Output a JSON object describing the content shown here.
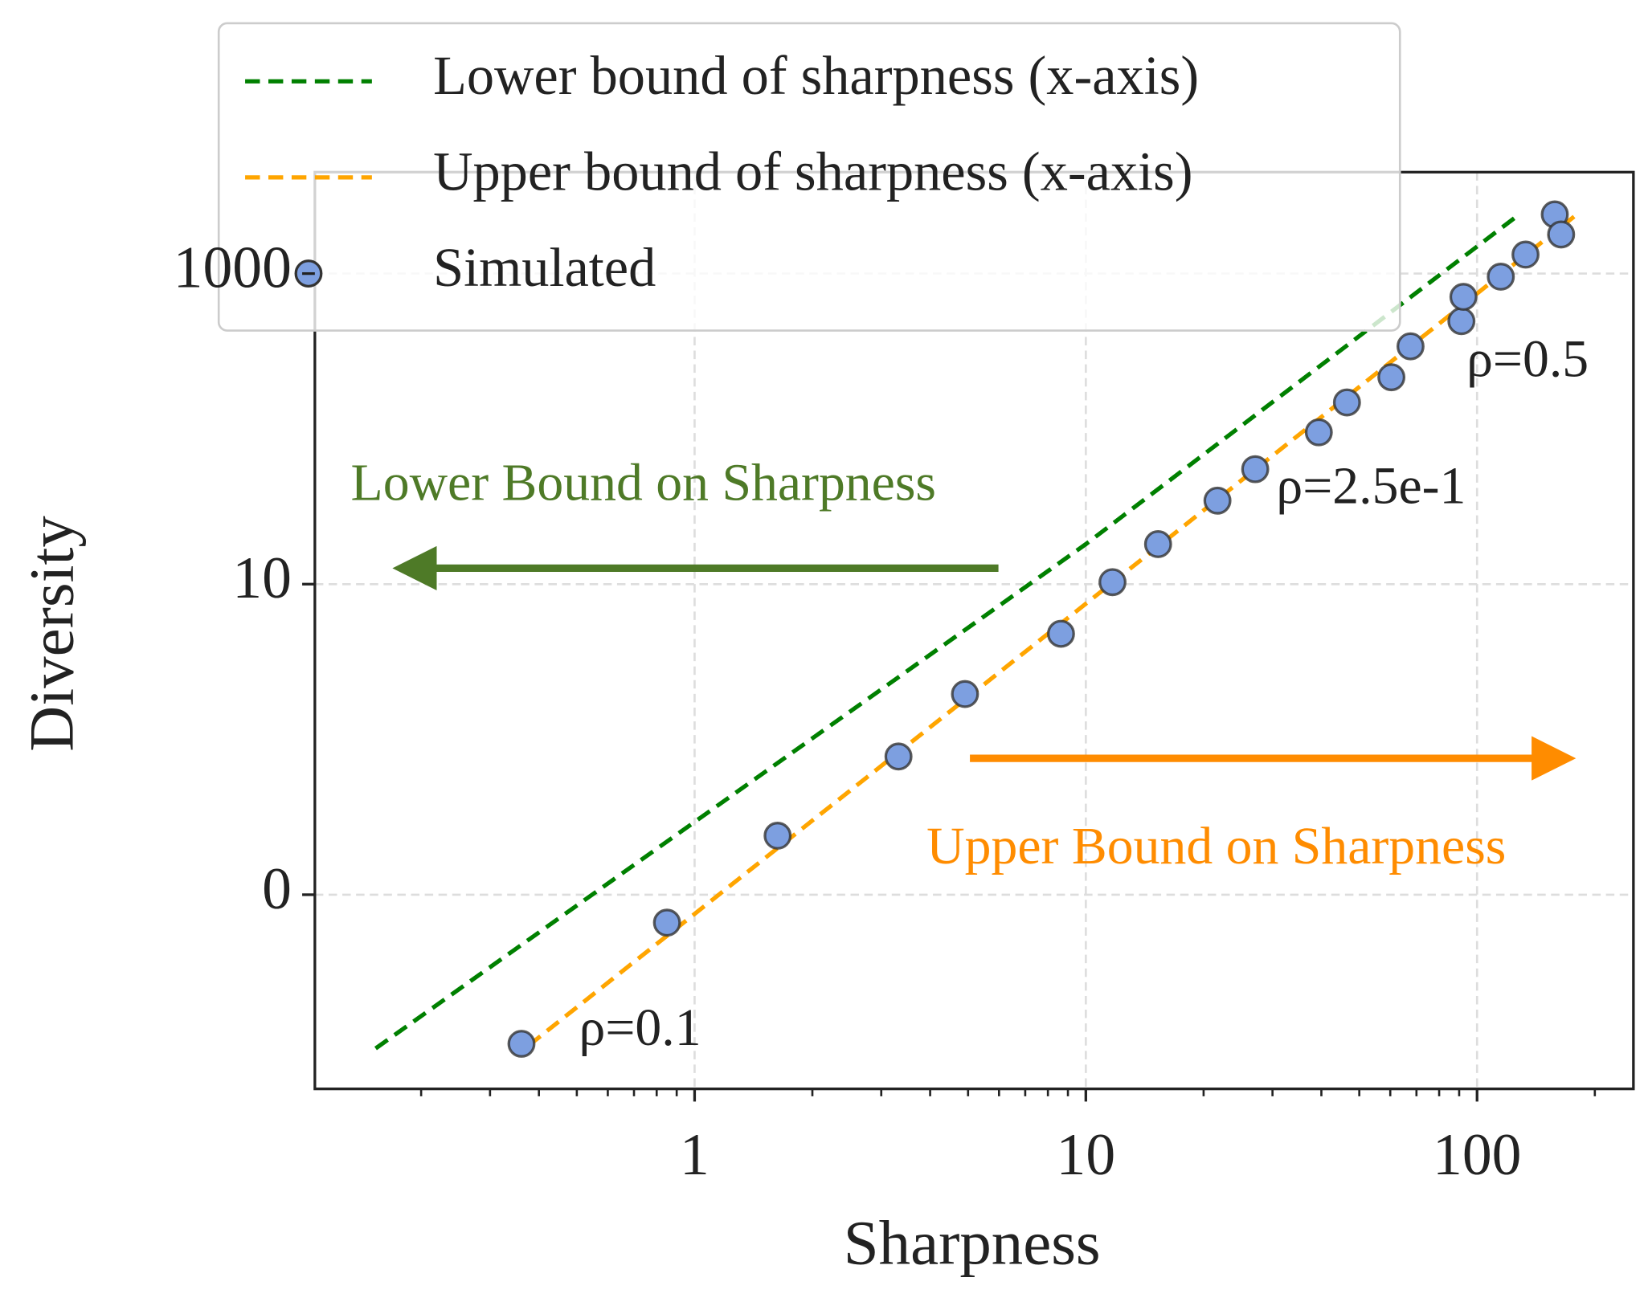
{
  "chart_data": {
    "type": "scatter",
    "x_label": "Sharpness",
    "y_label": "Diversity",
    "xscale": "log",
    "yscale": "symlog",
    "linthresh": 1,
    "xlim": [
      0.107,
      251
    ],
    "ylim": [
      -1.78,
      4500
    ],
    "xticks": [
      1,
      10,
      100
    ],
    "xminorticks": [
      0.2,
      0.3,
      0.4,
      0.5,
      0.6,
      0.7,
      0.8,
      0.9,
      2,
      3,
      4,
      5,
      6,
      7,
      8,
      9,
      20,
      30,
      40,
      50,
      60,
      70,
      80,
      90,
      200
    ],
    "yticks": [
      0,
      10,
      1000
    ],
    "grid": true,
    "series": [
      {
        "name": "Lower bound of sharpness (x-axis)",
        "color": "#008000",
        "kind": "line",
        "dashed": true,
        "x": [
          0.153,
          10,
          126
        ],
        "values": [
          -0.99,
          18.1,
          2327
        ]
      },
      {
        "name": "Upper bound of sharpness (x-axis)",
        "color": "#ffa500",
        "kind": "line",
        "dashed": true,
        "x": [
          0.377,
          177
        ],
        "values": [
          -0.97,
          2327
        ]
      },
      {
        "name": "Simulated",
        "color": "#7d9fe0",
        "kind": "points",
        "x": [
          0.361,
          0.85,
          1.63,
          3.32,
          4.91,
          8.64,
          11.7,
          15.3,
          21.7,
          27.1,
          39.4,
          46.5,
          60.4,
          67.6,
          91.2,
          92.3,
          115,
          133,
          158,
          164
        ],
        "values": [
          -0.96,
          -0.18,
          0.38,
          0.89,
          1.96,
          4.79,
          10.3,
          18.1,
          34.5,
          55,
          95,
          148,
          215,
          340,
          494,
          708,
          955,
          1325,
          2404,
          1786
        ]
      }
    ],
    "annotations": [
      {
        "text": "ρ=0.1",
        "color": "#222222"
      },
      {
        "text": "ρ=2.5e-1",
        "color": "#222222"
      },
      {
        "text": "ρ=0.5",
        "color": "#222222"
      },
      {
        "text": "Lower Bound on Sharpness",
        "color": "#4e7a27"
      },
      {
        "text": "Upper Bound on Sharpness",
        "color": "#ff8c00"
      }
    ]
  }
}
